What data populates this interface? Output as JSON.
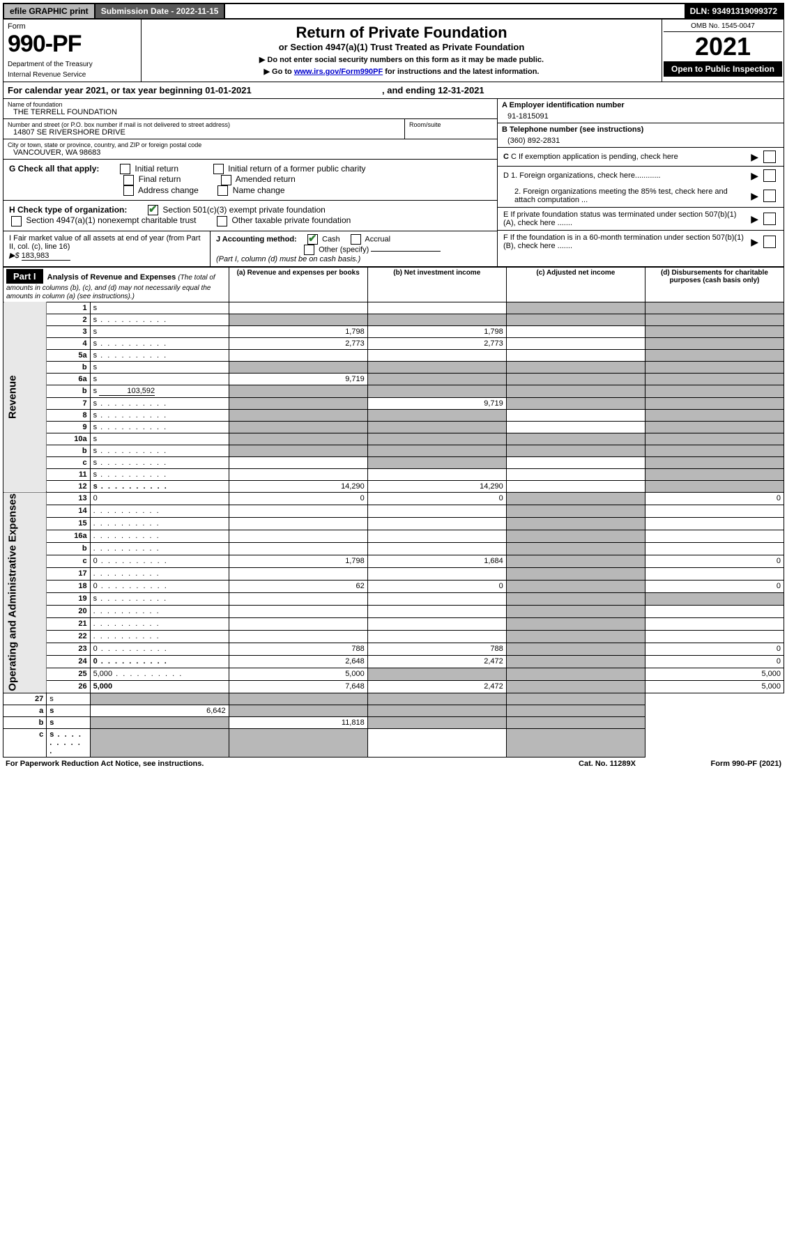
{
  "topbar": {
    "efile": "efile GRAPHIC print",
    "submission": "Submission Date - 2022-11-15",
    "dln": "DLN: 93491319099372"
  },
  "header": {
    "form_label": "Form",
    "form_number": "990-PF",
    "dept": "Department of the Treasury",
    "irs": "Internal Revenue Service",
    "title": "Return of Private Foundation",
    "subtitle": "or Section 4947(a)(1) Trust Treated as Private Foundation",
    "instr1": "▶ Do not enter social security numbers on this form as it may be made public.",
    "instr2_pre": "▶ Go to ",
    "instr2_link": "www.irs.gov/Form990PF",
    "instr2_post": " for instructions and the latest information.",
    "omb": "OMB No. 1545-0047",
    "tax_year": "2021",
    "open_public": "Open to Public Inspection"
  },
  "cal_year": {
    "text_pre": "For calendar year 2021, or tax year beginning ",
    "begin": "01-01-2021",
    "text_mid": " , and ending ",
    "end": "12-31-2021"
  },
  "foundation": {
    "name_label": "Name of foundation",
    "name": "THE TERRELL FOUNDATION",
    "addr_label": "Number and street (or P.O. box number if mail is not delivered to street address)",
    "addr": "14807 SE RIVERSHORE DRIVE",
    "room_label": "Room/suite",
    "city_label": "City or town, state or province, country, and ZIP or foreign postal code",
    "city": "VANCOUVER, WA  98683"
  },
  "right_info": {
    "a_label": "A Employer identification number",
    "a_val": "91-1815091",
    "b_label": "B Telephone number (see instructions)",
    "b_val": "(360) 892-2831",
    "c_label": "C If exemption application is pending, check here",
    "d1": "D 1. Foreign organizations, check here............",
    "d2": "2. Foreign organizations meeting the 85% test, check here and attach computation ...",
    "e": "E  If private foundation status was terminated under section 507(b)(1)(A), check here .......",
    "f": "F  If the foundation is in a 60-month termination under section 507(b)(1)(B), check here ......."
  },
  "section_g": {
    "label": "G Check all that apply:",
    "opts": [
      "Initial return",
      "Final return",
      "Address change",
      "Initial return of a former public charity",
      "Amended return",
      "Name change"
    ]
  },
  "section_h": {
    "label": "H Check type of organization:",
    "opt1": "Section 501(c)(3) exempt private foundation",
    "opt2": "Section 4947(a)(1) nonexempt charitable trust",
    "opt3": "Other taxable private foundation"
  },
  "section_i": {
    "label": "I Fair market value of all assets at end of year (from Part II, col. (c), line 16)",
    "arrow": "▶$",
    "val": "183,983"
  },
  "section_j": {
    "label": "J Accounting method:",
    "cash": "Cash",
    "accrual": "Accrual",
    "other": "Other (specify)",
    "note": "(Part I, column (d) must be on cash basis.)"
  },
  "part1": {
    "label": "Part I",
    "title": "Analysis of Revenue and Expenses",
    "note": "(The total of amounts in columns (b), (c), and (d) may not necessarily equal the amounts in column (a) (see instructions).)",
    "col_a": "(a)   Revenue and expenses per books",
    "col_b": "(b)   Net investment income",
    "col_c": "(c)   Adjusted net income",
    "col_d": "(d)   Disbursements for charitable purposes (cash basis only)"
  },
  "side_labels": {
    "revenue": "Revenue",
    "expenses": "Operating and Administrative Expenses"
  },
  "rows": {
    "1": {
      "n": "1",
      "d": "s",
      "a": "",
      "b": "",
      "c": "s"
    },
    "2": {
      "n": "2",
      "d": "s",
      "a": "s",
      "b": "s",
      "c": "s",
      "dotted": true
    },
    "3": {
      "n": "3",
      "d": "s",
      "a": "1,798",
      "b": "1,798",
      "c": ""
    },
    "4": {
      "n": "4",
      "d": "s",
      "a": "2,773",
      "b": "2,773",
      "c": "",
      "dotted": true
    },
    "5a": {
      "n": "5a",
      "d": "s",
      "a": "",
      "b": "",
      "c": "",
      "dotted": true
    },
    "5b": {
      "n": "b",
      "d": "s",
      "a": "s",
      "b": "s",
      "c": "s"
    },
    "6a": {
      "n": "6a",
      "d": "s",
      "a": "9,719",
      "b": "s",
      "c": "s"
    },
    "6b": {
      "n": "b",
      "d": "s",
      "v": "103,592",
      "a": "s",
      "b": "s",
      "c": "s"
    },
    "7": {
      "n": "7",
      "d": "s",
      "a": "s",
      "b": "9,719",
      "c": "s",
      "dotted": true
    },
    "8": {
      "n": "8",
      "d": "s",
      "a": "s",
      "b": "s",
      "c": "",
      "dotted": true
    },
    "9": {
      "n": "9",
      "d": "s",
      "a": "s",
      "b": "s",
      "c": "",
      "dotted": true
    },
    "10a": {
      "n": "10a",
      "d": "s",
      "a": "s",
      "b": "s",
      "c": "s"
    },
    "10b": {
      "n": "b",
      "d": "s",
      "a": "s",
      "b": "s",
      "c": "s",
      "dotted": true
    },
    "10c": {
      "n": "c",
      "d": "s",
      "a": "",
      "b": "s",
      "c": "",
      "dotted": true
    },
    "11": {
      "n": "11",
      "d": "s",
      "a": "",
      "b": "",
      "c": "",
      "dotted": true
    },
    "12": {
      "n": "12",
      "d": "s",
      "a": "14,290",
      "b": "14,290",
      "c": "",
      "bold": true,
      "dotted": true
    },
    "13": {
      "n": "13",
      "d": "0",
      "a": "0",
      "b": "0",
      "c": "s"
    },
    "14": {
      "n": "14",
      "d": "",
      "a": "",
      "b": "",
      "c": "s",
      "dotted": true
    },
    "15": {
      "n": "15",
      "d": "",
      "a": "",
      "b": "",
      "c": "s",
      "dotted": true
    },
    "16a": {
      "n": "16a",
      "d": "",
      "a": "",
      "b": "",
      "c": "s",
      "dotted": true
    },
    "16b": {
      "n": "b",
      "d": "",
      "a": "",
      "b": "",
      "c": "s",
      "dotted": true
    },
    "16c": {
      "n": "c",
      "d": "0",
      "a": "1,798",
      "b": "1,684",
      "c": "s",
      "dotted": true
    },
    "17": {
      "n": "17",
      "d": "",
      "a": "",
      "b": "",
      "c": "s",
      "dotted": true
    },
    "18": {
      "n": "18",
      "d": "0",
      "a": "62",
      "b": "0",
      "c": "s",
      "dotted": true
    },
    "19": {
      "n": "19",
      "d": "s",
      "a": "",
      "b": "",
      "c": "s",
      "dotted": true
    },
    "20": {
      "n": "20",
      "d": "",
      "a": "",
      "b": "",
      "c": "s",
      "dotted": true
    },
    "21": {
      "n": "21",
      "d": "",
      "a": "",
      "b": "",
      "c": "s",
      "dotted": true
    },
    "22": {
      "n": "22",
      "d": "",
      "a": "",
      "b": "",
      "c": "s",
      "dotted": true
    },
    "23": {
      "n": "23",
      "d": "0",
      "a": "788",
      "b": "788",
      "c": "s",
      "dotted": true
    },
    "24": {
      "n": "24",
      "d": "0",
      "a": "2,648",
      "b": "2,472",
      "c": "s",
      "bold": true,
      "dotted": true
    },
    "25": {
      "n": "25",
      "d": "5,000",
      "a": "5,000",
      "b": "s",
      "c": "s",
      "dotted": true
    },
    "26": {
      "n": "26",
      "d": "5,000",
      "a": "7,648",
      "b": "2,472",
      "c": "s",
      "bold": true
    },
    "27": {
      "n": "27",
      "d": "s",
      "a": "s",
      "b": "s",
      "c": "s"
    },
    "27a": {
      "n": "a",
      "d": "s",
      "a": "6,642",
      "b": "s",
      "c": "s",
      "bold": true
    },
    "27b": {
      "n": "b",
      "d": "s",
      "a": "s",
      "b": "11,818",
      "c": "s",
      "bold": true
    },
    "27c": {
      "n": "c",
      "d": "s",
      "a": "s",
      "b": "s",
      "c": "",
      "bold": true,
      "dotted": true
    }
  },
  "footer": {
    "left": "For Paperwork Reduction Act Notice, see instructions.",
    "mid": "Cat. No. 11289X",
    "right": "Form 990-PF (2021)"
  }
}
